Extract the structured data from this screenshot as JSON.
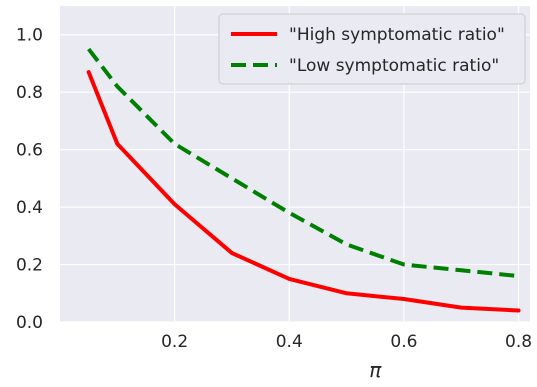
{
  "chart_data": {
    "type": "line",
    "title": "",
    "xlabel": "π",
    "ylabel": "",
    "xlim": [
      0.0,
      0.82
    ],
    "ylim": [
      0.0,
      1.1
    ],
    "xticks": [
      0.2,
      0.4,
      0.6,
      0.8
    ],
    "xtick_labels": [
      "0.2",
      "0.4",
      "0.6",
      "0.8"
    ],
    "yticks": [
      0.0,
      0.2,
      0.4,
      0.6,
      0.8,
      1.0
    ],
    "ytick_labels": [
      "0.0",
      "0.2",
      "0.4",
      "0.6",
      "0.8",
      "1.0"
    ],
    "grid": true,
    "background_color": "#eaeaf2",
    "grid_color": "#ffffff",
    "legend_position": "top-right",
    "x": [
      0.05,
      0.1,
      0.2,
      0.3,
      0.4,
      0.5,
      0.6,
      0.7,
      0.8
    ],
    "series": [
      {
        "name": "\"High symptomatic ratio\"",
        "color": "#ff0000",
        "line_style": "solid",
        "values": [
          0.87,
          0.62,
          0.41,
          0.24,
          0.15,
          0.1,
          0.08,
          0.05,
          0.04
        ]
      },
      {
        "name": "\"Low symptomatic ratio\"",
        "color": "#008000",
        "line_style": "dashed",
        "values": [
          0.95,
          0.82,
          0.62,
          0.5,
          0.38,
          0.27,
          0.2,
          0.18,
          0.16
        ]
      }
    ]
  }
}
